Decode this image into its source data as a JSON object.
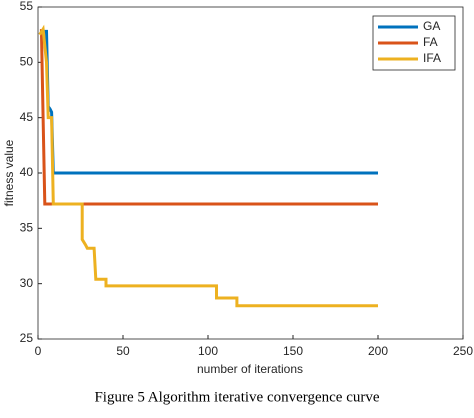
{
  "chart_data": {
    "type": "line",
    "caption": "Figure 5 Algorithm iterative convergence curve",
    "xlabel": "number of iterations",
    "ylabel": "fitness value",
    "xlim": [
      0,
      250
    ],
    "xticks": [
      0,
      50,
      100,
      150,
      200,
      250
    ],
    "ylim": [
      25,
      55
    ],
    "yticks": [
      25,
      30,
      35,
      40,
      45,
      50,
      55
    ],
    "legend": "upper right",
    "series": [
      {
        "name": "GA",
        "color": "#0072bd",
        "x": [
          3,
          5,
          6,
          7,
          8,
          9,
          200
        ],
        "values": [
          52.8,
          52.8,
          46,
          45.8,
          45.5,
          40,
          40
        ]
      },
      {
        "name": "FA",
        "color": "#d95319",
        "x": [
          2,
          3,
          4,
          200
        ],
        "values": [
          53,
          45,
          37.2,
          37.2
        ]
      },
      {
        "name": "IFA",
        "color": "#edb120",
        "x": [
          1,
          3,
          5,
          6,
          8,
          9,
          26,
          26,
          28,
          29,
          33,
          34,
          40,
          40,
          45,
          105,
          105,
          117,
          117,
          200
        ],
        "values": [
          52.5,
          53,
          50,
          45,
          45,
          37.2,
          37.2,
          34,
          33.5,
          33.2,
          33.2,
          30.4,
          30.4,
          29.8,
          29.8,
          29.8,
          28.7,
          28.7,
          28,
          28
        ]
      }
    ]
  }
}
